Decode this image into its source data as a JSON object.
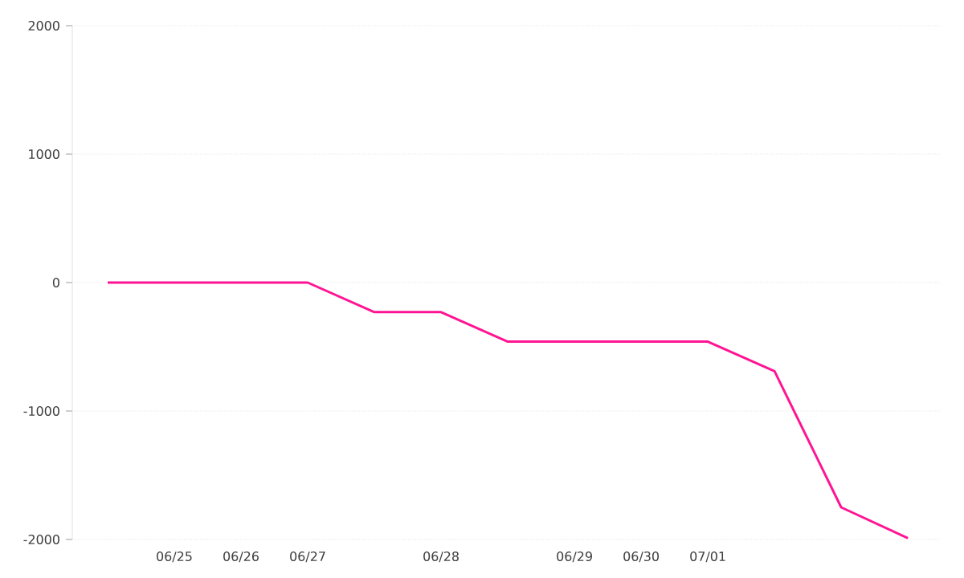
{
  "chart_data": {
    "type": "line",
    "categories": [
      null,
      "06/25",
      "06/26",
      "06/27",
      null,
      "06/28",
      null,
      "06/29",
      "06/30",
      "07/01",
      null,
      null,
      null
    ],
    "series": [
      {
        "color": "#ff1493",
        "values": [
          0,
          0,
          0,
          0,
          -230,
          -230,
          -460,
          -460,
          -460,
          -460,
          -690,
          -1750,
          -1990
        ]
      }
    ],
    "ylim": [
      -2000,
      2000
    ],
    "yticks": [
      -2000,
      -1000,
      0,
      1000,
      2000
    ],
    "grid": "y",
    "marker": "none",
    "line_style": "solid"
  }
}
